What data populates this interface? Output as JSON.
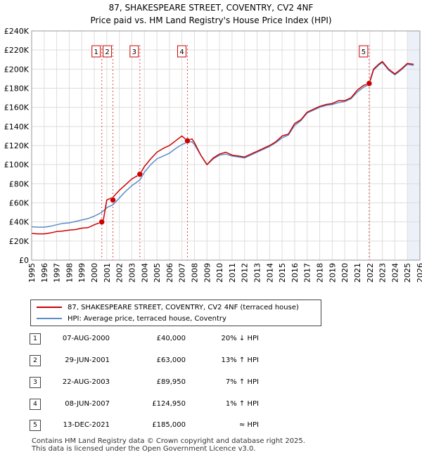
{
  "chart_data": {
    "type": "line",
    "title": "87, SHAKESPEARE STREET, COVENTRY, CV2 4NF",
    "subtitle": "Price paid vs. HM Land Registry's House Price Index (HPI)",
    "xlabel": "",
    "ylabel": "",
    "xlim": [
      1995,
      2026
    ],
    "ylim": [
      0,
      240000
    ],
    "x_ticks": [
      "1995",
      "1996",
      "1997",
      "1998",
      "1999",
      "2000",
      "2001",
      "2002",
      "2003",
      "2004",
      "2005",
      "2006",
      "2007",
      "2008",
      "2009",
      "2010",
      "2011",
      "2012",
      "2013",
      "2014",
      "2015",
      "2016",
      "2017",
      "2018",
      "2019",
      "2020",
      "2021",
      "2022",
      "2023",
      "2024",
      "2025",
      "2026"
    ],
    "y_ticks": [
      {
        "value": 0,
        "label": "£0"
      },
      {
        "value": 20000,
        "label": "£20K"
      },
      {
        "value": 40000,
        "label": "£40K"
      },
      {
        "value": 60000,
        "label": "£60K"
      },
      {
        "value": 80000,
        "label": "£80K"
      },
      {
        "value": 100000,
        "label": "£100K"
      },
      {
        "value": 120000,
        "label": "£120K"
      },
      {
        "value": 140000,
        "label": "£140K"
      },
      {
        "value": 160000,
        "label": "£160K"
      },
      {
        "value": 180000,
        "label": "£180K"
      },
      {
        "value": 200000,
        "label": "£200K"
      },
      {
        "value": 220000,
        "label": "£220K"
      },
      {
        "value": 240000,
        "label": "£240K"
      }
    ],
    "series": [
      {
        "name": "87, SHAKESPEARE STREET, COVENTRY, CV2 4NF (terraced house)",
        "color": "#cc0000",
        "x": [
          1995.0,
          1995.5,
          1996.0,
          1996.5,
          1997.0,
          1997.5,
          1998.0,
          1998.5,
          1999.0,
          1999.5,
          2000.0,
          2000.6,
          2000.7,
          2001.0,
          2001.5,
          2002.0,
          2002.5,
          2003.0,
          2003.65,
          2004.0,
          2004.5,
          2005.0,
          2005.5,
          2006.0,
          2006.5,
          2007.0,
          2007.44,
          2007.8,
          2008.0,
          2008.5,
          2009.0,
          2009.5,
          2010.0,
          2010.5,
          2011.0,
          2011.5,
          2012.0,
          2012.5,
          2013.0,
          2013.5,
          2014.0,
          2014.5,
          2015.0,
          2015.5,
          2016.0,
          2016.5,
          2017.0,
          2017.5,
          2018.0,
          2018.5,
          2019.0,
          2019.5,
          2020.0,
          2020.5,
          2021.0,
          2021.5,
          2021.95,
          2022.3,
          2022.7,
          2023.0,
          2023.5,
          2024.0,
          2024.5,
          2025.0,
          2025.5
        ],
        "values": [
          28000,
          27500,
          27500,
          28500,
          30000,
          30500,
          31500,
          32000,
          33500,
          34000,
          37000,
          40000,
          40000,
          63000,
          66000,
          73000,
          79000,
          85000,
          89950,
          98000,
          106000,
          113000,
          117000,
          120000,
          125000,
          130000,
          124950,
          127000,
          123000,
          110000,
          100000,
          107000,
          111000,
          113000,
          110000,
          109000,
          108000,
          111000,
          114000,
          117000,
          120000,
          124000,
          130000,
          132000,
          143000,
          147000,
          155000,
          158000,
          161000,
          163000,
          164000,
          167000,
          167000,
          170000,
          178000,
          183000,
          185000,
          200000,
          205000,
          208000,
          200000,
          195000,
          200000,
          206000,
          205000
        ]
      },
      {
        "name": "HPI: Average price, terraced house, Coventry",
        "color": "#5b8dc9",
        "x": [
          1995.0,
          1995.5,
          1996.0,
          1996.5,
          1997.0,
          1997.5,
          1998.0,
          1998.5,
          1999.0,
          1999.5,
          2000.0,
          2000.6,
          2001.0,
          2001.5,
          2002.0,
          2002.5,
          2003.0,
          2003.65,
          2004.0,
          2004.5,
          2005.0,
          2005.5,
          2006.0,
          2006.5,
          2007.0,
          2007.44,
          2007.8,
          2008.0,
          2008.5,
          2009.0,
          2009.5,
          2010.0,
          2010.5,
          2011.0,
          2011.5,
          2012.0,
          2012.5,
          2013.0,
          2013.5,
          2014.0,
          2014.5,
          2015.0,
          2015.5,
          2016.0,
          2016.5,
          2017.0,
          2017.5,
          2018.0,
          2018.5,
          2019.0,
          2019.5,
          2020.0,
          2020.5,
          2021.0,
          2021.5,
          2021.95,
          2022.3,
          2022.7,
          2023.0,
          2023.5,
          2024.0,
          2024.5,
          2025.0,
          2025.5
        ],
        "values": [
          35000,
          34500,
          34500,
          35500,
          37000,
          38500,
          39000,
          40500,
          42000,
          43500,
          46000,
          50000,
          55000,
          58000,
          65000,
          72000,
          78000,
          84000,
          92000,
          100000,
          106000,
          109000,
          112000,
          117000,
          121000,
          123500,
          124000,
          121000,
          110000,
          100000,
          106000,
          110000,
          111000,
          109000,
          108000,
          107000,
          110000,
          113000,
          116000,
          119000,
          123000,
          128000,
          131000,
          141000,
          146000,
          154000,
          157000,
          160000,
          162000,
          163000,
          165000,
          166000,
          169000,
          176000,
          181000,
          184000,
          199000,
          204000,
          207000,
          199000,
          194000,
          199000,
          205000,
          204000
        ]
      }
    ],
    "sales": [
      {
        "num": "1",
        "x": 2000.6,
        "value": 40000,
        "date": "07-AUG-2000",
        "price": "£40,000",
        "hpi": "20% ↓ HPI"
      },
      {
        "num": "2",
        "x": 2001.49,
        "value": 63000,
        "date": "29-JUN-2001",
        "price": "£63,000",
        "hpi": "13% ↑ HPI"
      },
      {
        "num": "3",
        "x": 2003.64,
        "value": 89950,
        "date": "22-AUG-2003",
        "price": "£89,950",
        "hpi": "7% ↑ HPI"
      },
      {
        "num": "4",
        "x": 2007.44,
        "value": 124950,
        "date": "08-JUN-2007",
        "price": "£124,950",
        "hpi": "1% ↑ HPI"
      },
      {
        "num": "5",
        "x": 2021.95,
        "value": 185000,
        "date": "13-DEC-2021",
        "price": "£185,000",
        "hpi": "≈ HPI"
      }
    ],
    "colors": {
      "red": "#cc0000",
      "blue": "#5b8dc9",
      "shade": "#dde6f5",
      "plot_bg": "#ffffff",
      "grid": "#dddddd"
    }
  },
  "legend": {
    "property_label": "87, SHAKESPEARE STREET, COVENTRY, CV2 4NF (terraced house)",
    "hpi_label": "HPI: Average price, terraced house, Coventry"
  },
  "footer": {
    "line1": "Contains HM Land Registry data © Crown copyright and database right 2025.",
    "line2": "This data is licensed under the Open Government Licence v3.0."
  }
}
